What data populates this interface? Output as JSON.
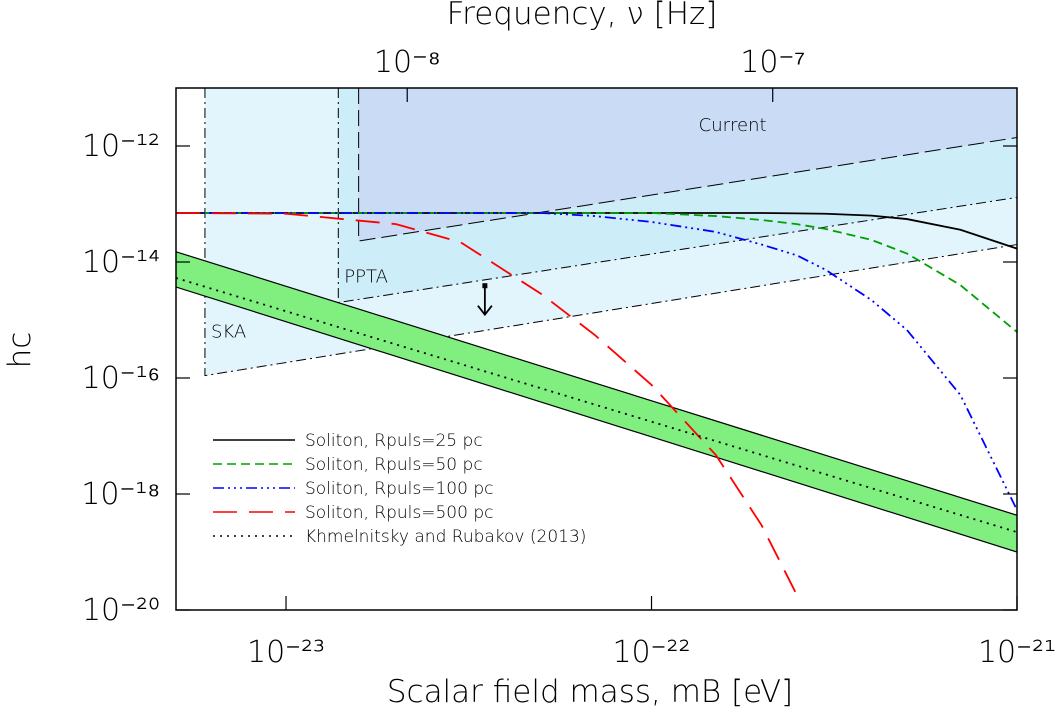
{
  "chart_data": {
    "type": "line",
    "xlabel": "Scalar field mass, mB [eV]",
    "ylabel": "hc",
    "x2label": "Frequency, ν [Hz]",
    "xscale": "log",
    "yscale": "log",
    "xlim": [
      5e-24,
      1e-21
    ],
    "ylim": [
      1e-20,
      1e-11
    ],
    "x2lim": [
      2.33e-09,
      4.66e-07
    ],
    "xticks": [
      {
        "value": 1e-23,
        "label": "10⁻²³"
      },
      {
        "value": 1e-22,
        "label": "10⁻²²"
      },
      {
        "value": 1e-21,
        "label": "10⁻²¹"
      }
    ],
    "yticks": [
      {
        "value": 1e-12,
        "label": "10⁻¹²"
      },
      {
        "value": 1e-14,
        "label": "10⁻¹⁴"
      },
      {
        "value": 1e-16,
        "label": "10⁻¹⁶"
      },
      {
        "value": 1e-18,
        "label": "10⁻¹⁸"
      },
      {
        "value": 1e-20,
        "label": "10⁻²⁰"
      }
    ],
    "x2ticks": [
      {
        "value": 1e-08,
        "label": "10⁻⁸"
      },
      {
        "value": 1e-07,
        "label": "10⁻⁷"
      }
    ],
    "legend": "lower left",
    "regions": [
      {
        "name": "SKA",
        "color": "#e2f4fc",
        "x": [
          6e-24,
          1e-21
        ],
        "lower": [
          1.1e-16,
          2e-14
        ]
      },
      {
        "name": "PPTA",
        "color": "#cdedf9",
        "x": [
          1.39e-23,
          1e-21
        ],
        "lower": [
          2e-15,
          1.3e-13
        ]
      },
      {
        "name": "Current",
        "color": "#c9dbf5",
        "x": [
          1.58e-23,
          1e-21
        ],
        "lower": [
          2.3e-14,
          1.4e-12
        ]
      }
    ],
    "upper_limit": {
      "x": 3.5e-23,
      "value": 3.9e-15
    },
    "series": [
      {
        "name": "Soliton, Rpuls=25 pc",
        "color": "#000000",
        "dash": "solid",
        "x": [
          5e-24,
          1e-23,
          2e-23,
          3e-23,
          5e-23,
          7e-23,
          1e-22,
          1.5e-22,
          2e-22,
          2.5e-22,
          3e-22,
          4e-22,
          5e-22,
          7e-22,
          1e-21
        ],
        "values": [
          7e-14,
          7e-14,
          7e-14,
          7e-14,
          7e-14,
          7e-14,
          7e-14,
          7e-14,
          7e-14,
          6.9e-14,
          6.8e-14,
          6.3e-14,
          5.5e-14,
          3.6e-14,
          1.7e-14
        ]
      },
      {
        "name": "Soliton, Rpuls=50 pc",
        "color": "#00a000",
        "dash": "dashed",
        "x": [
          5e-24,
          1e-23,
          2e-23,
          3e-23,
          5e-23,
          7e-23,
          1e-22,
          1.5e-22,
          2e-22,
          2.5e-22,
          3e-22,
          4e-22,
          5e-22,
          7e-22,
          1e-21
        ],
        "values": [
          7e-14,
          7e-14,
          7e-14,
          7e-14,
          7e-14,
          7e-14,
          7e-14,
          6.2e-14,
          5.3e-14,
          4.5e-14,
          3.7e-14,
          2.4e-14,
          1.4e-14,
          4e-15,
          6.2e-16
        ]
      },
      {
        "name": "Soliton, Rpuls=100 pc",
        "color": "#0000ff",
        "dash": "dash-dot-dot",
        "x": [
          5e-24,
          1e-23,
          2e-23,
          3e-23,
          5e-23,
          7e-23,
          1e-22,
          1.5e-22,
          2e-22,
          2.5e-22,
          3e-22,
          4e-22,
          5e-22,
          7e-22,
          1e-21
        ],
        "values": [
          7e-14,
          7e-14,
          7e-14,
          7e-14,
          7e-14,
          6.2e-14,
          4.9e-14,
          3.3e-14,
          2e-14,
          1.3e-14,
          7.3e-15,
          2.2e-15,
          6.7e-16,
          5.1e-17,
          5.3e-19
        ]
      },
      {
        "name": "Soliton, Rpuls=500 pc",
        "color": "#ff0000",
        "dash": "long-dash",
        "x": [
          5e-24,
          1e-23,
          2e-23,
          3e-23,
          5e-23,
          7e-23,
          1e-22,
          1.5e-22,
          2e-22,
          2.5e-22
        ],
        "values": [
          7e-14,
          6.8e-14,
          4.5e-14,
          2.2e-14,
          2.8e-15,
          5.5e-16,
          7.6e-17,
          4.7e-18,
          2.9e-19,
          1.8e-20
        ]
      },
      {
        "name": "Khmelnitsky and Rubakov (2013)",
        "color": "#000000",
        "dash": "dotted",
        "band_color": "#80ef80",
        "x": [
          5e-24,
          1e-21
        ],
        "values": [
          5.3e-15,
          2.2e-19
        ],
        "lower": [
          3.7e-15,
          1e-19
        ],
        "upper": [
          1.5e-14,
          4.3e-19
        ]
      }
    ]
  }
}
